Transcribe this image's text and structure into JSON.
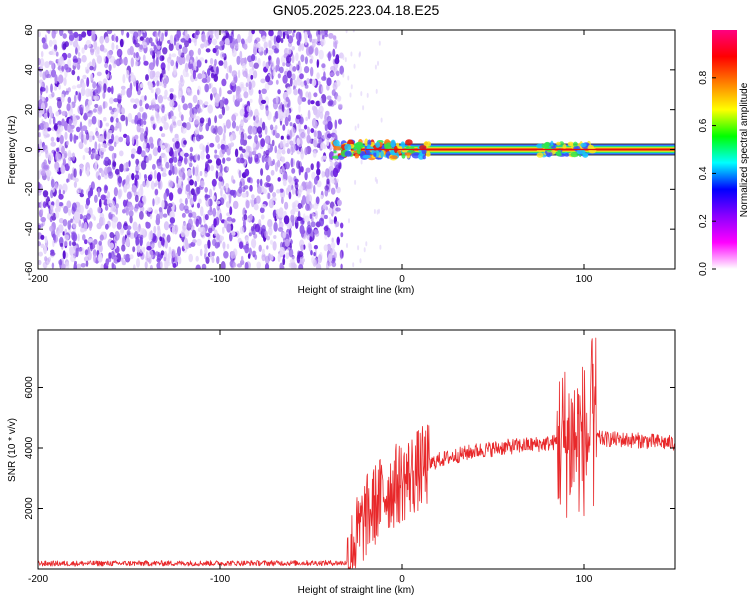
{
  "title": "GN05.2025.223.04.18.E25",
  "colors": {
    "snr_line": "#e8282a",
    "frame": "#000000",
    "noise_purple": "#6a1be0",
    "signal_core": "#e01010",
    "signal_band_green": "#2ee84a"
  },
  "chart_data": [
    {
      "type": "heatmap",
      "xlabel": "Height of straight line (km)",
      "ylabel": "Frequency (Hz)",
      "xlim": [
        -200,
        150
      ],
      "ylim": [
        -60,
        60
      ],
      "x_ticks": [
        -200,
        -100,
        0,
        100
      ],
      "y_ticks": [
        -60,
        -40,
        -20,
        0,
        20,
        40,
        60
      ],
      "colorbar": {
        "label": "Normalized spectral amplitude",
        "ticks": [
          0.0,
          0.2,
          0.4,
          0.6,
          0.8
        ],
        "range": [
          0,
          1
        ],
        "colormap": [
          "#ffffff",
          "#ff00ff",
          "#8a00ff",
          "#0000ff",
          "#00ffff",
          "#00ff00",
          "#ffff00",
          "#ff8000",
          "#ff0000",
          "#ff0080"
        ]
      },
      "noise_region_x": [
        -200,
        -33
      ],
      "signal": {
        "frequency_hz": 0,
        "x_start": -38,
        "x_end": 150,
        "peak_amplitude": 1.0
      },
      "grid": false
    },
    {
      "type": "line",
      "xlabel": "Height of straight line (km)",
      "ylabel": "SNR (10 * v/v)",
      "xlim": [
        -200,
        150
      ],
      "ylim": [
        0,
        7900
      ],
      "x_ticks": [
        -200,
        -100,
        0,
        100
      ],
      "y_ticks": [
        2000,
        4000,
        6000
      ],
      "profile": {
        "x": [
          -200,
          -30,
          -26,
          -20,
          -10,
          0,
          10,
          20,
          40,
          60,
          80,
          90,
          100,
          106,
          110,
          130,
          150
        ],
        "y": [
          180,
          200,
          900,
          1700,
          2500,
          2900,
          3300,
          3600,
          3900,
          4050,
          4150,
          4250,
          4300,
          4350,
          4300,
          4250,
          4150
        ]
      },
      "grid": false
    }
  ]
}
